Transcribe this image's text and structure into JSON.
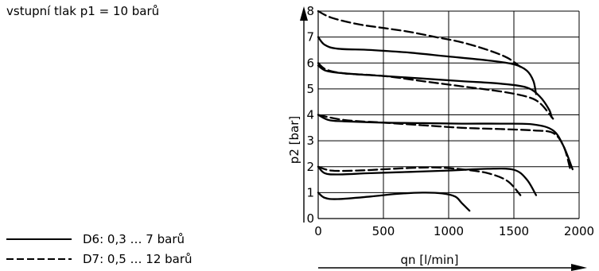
{
  "note": "vstupní tlak p1 = 10 barů",
  "chart_data": {
    "type": "line",
    "xlabel": "qn [l/min]",
    "ylabel": "p2 [bar]",
    "xlim": [
      0,
      2000
    ],
    "ylim": [
      0,
      8
    ],
    "xticks": [
      "0",
      "500",
      "1000",
      "1500",
      "2000"
    ],
    "yticks": [
      "0",
      "1",
      "2",
      "3",
      "4",
      "5",
      "6",
      "7",
      "8"
    ],
    "grid": true,
    "legend_position": "bottom-left",
    "legend": [
      {
        "label": "D6: 0,3 … 7 barů",
        "style": "solid"
      },
      {
        "label": "D7: 0,5 … 12 barů",
        "style": "dashed"
      }
    ],
    "series": [
      {
        "style": "dashed",
        "points": [
          [
            0,
            8.0
          ],
          [
            100,
            7.75
          ],
          [
            300,
            7.5
          ],
          [
            500,
            7.35
          ],
          [
            700,
            7.2
          ],
          [
            900,
            7.0
          ],
          [
            1100,
            6.8
          ],
          [
            1300,
            6.5
          ],
          [
            1450,
            6.2
          ],
          [
            1550,
            5.85
          ]
        ]
      },
      {
        "style": "solid",
        "points": [
          [
            0,
            7.0
          ],
          [
            50,
            6.7
          ],
          [
            150,
            6.55
          ],
          [
            400,
            6.5
          ],
          [
            700,
            6.4
          ],
          [
            1000,
            6.25
          ],
          [
            1300,
            6.1
          ],
          [
            1500,
            5.95
          ],
          [
            1600,
            5.7
          ],
          [
            1650,
            5.3
          ],
          [
            1670,
            4.8
          ]
        ]
      },
      {
        "style": "dashed",
        "points": [
          [
            0,
            6.0
          ],
          [
            60,
            5.75
          ],
          [
            200,
            5.6
          ],
          [
            500,
            5.5
          ],
          [
            800,
            5.3
          ],
          [
            1100,
            5.1
          ],
          [
            1400,
            4.9
          ],
          [
            1600,
            4.7
          ],
          [
            1700,
            4.45
          ],
          [
            1800,
            3.85
          ]
        ]
      },
      {
        "style": "solid",
        "points": [
          [
            0,
            5.9
          ],
          [
            60,
            5.7
          ],
          [
            200,
            5.6
          ],
          [
            500,
            5.5
          ],
          [
            800,
            5.4
          ],
          [
            1100,
            5.3
          ],
          [
            1400,
            5.2
          ],
          [
            1600,
            5.05
          ],
          [
            1700,
            4.7
          ],
          [
            1770,
            4.2
          ],
          [
            1790,
            3.9
          ]
        ]
      },
      {
        "style": "dashed",
        "points": [
          [
            0,
            4.0
          ],
          [
            200,
            3.8
          ],
          [
            500,
            3.7
          ],
          [
            800,
            3.6
          ],
          [
            1100,
            3.5
          ],
          [
            1400,
            3.45
          ],
          [
            1650,
            3.4
          ],
          [
            1800,
            3.3
          ],
          [
            1880,
            2.8
          ],
          [
            1930,
            1.95
          ]
        ]
      },
      {
        "style": "solid",
        "points": [
          [
            0,
            4.0
          ],
          [
            80,
            3.8
          ],
          [
            200,
            3.75
          ],
          [
            500,
            3.7
          ],
          [
            800,
            3.68
          ],
          [
            1100,
            3.66
          ],
          [
            1400,
            3.66
          ],
          [
            1650,
            3.63
          ],
          [
            1800,
            3.4
          ],
          [
            1880,
            2.8
          ],
          [
            1950,
            1.9
          ]
        ]
      },
      {
        "style": "dashed",
        "points": [
          [
            0,
            2.0
          ],
          [
            100,
            1.85
          ],
          [
            300,
            1.85
          ],
          [
            500,
            1.9
          ],
          [
            700,
            1.95
          ],
          [
            900,
            1.97
          ],
          [
            1100,
            1.9
          ],
          [
            1300,
            1.75
          ],
          [
            1450,
            1.45
          ],
          [
            1550,
            0.9
          ]
        ]
      },
      {
        "style": "solid",
        "points": [
          [
            0,
            2.0
          ],
          [
            50,
            1.75
          ],
          [
            150,
            1.7
          ],
          [
            400,
            1.75
          ],
          [
            700,
            1.8
          ],
          [
            1000,
            1.85
          ],
          [
            1300,
            1.92
          ],
          [
            1500,
            1.88
          ],
          [
            1600,
            1.5
          ],
          [
            1670,
            0.9
          ]
        ]
      },
      {
        "style": "solid",
        "points": [
          [
            0,
            1.0
          ],
          [
            50,
            0.8
          ],
          [
            150,
            0.75
          ],
          [
            400,
            0.85
          ],
          [
            600,
            0.95
          ],
          [
            800,
            1.0
          ],
          [
            950,
            0.97
          ],
          [
            1050,
            0.85
          ],
          [
            1100,
            0.6
          ],
          [
            1160,
            0.3
          ]
        ]
      }
    ]
  }
}
